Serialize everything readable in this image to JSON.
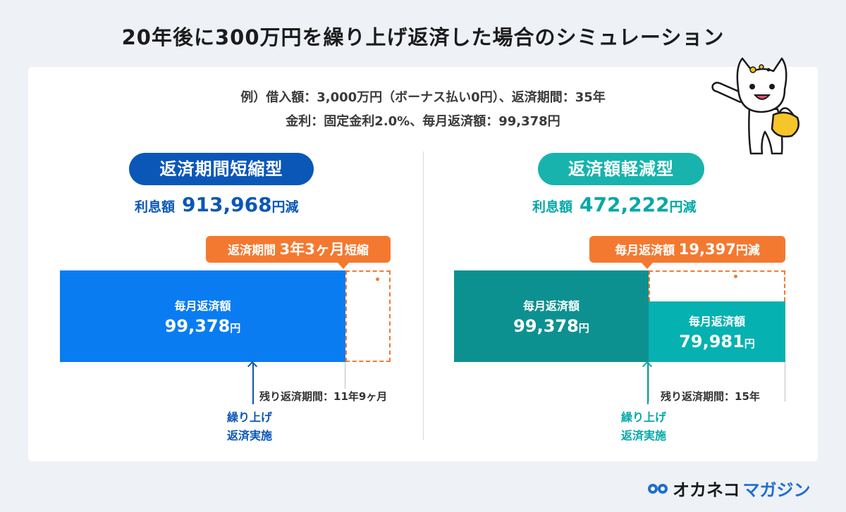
{
  "title": "20年後に300万円を繰り上げ返済した場合のシミュレーション",
  "conditions": {
    "line1": "例）借入額：3,000万円（ボーナス払い0円）、返済期間：35年",
    "line2": "金利：固定金利2.0%、毎月返済額：99,378円"
  },
  "left": {
    "heading": "返済期間短縮型",
    "interest_label": "利息額",
    "interest_value": "913,968",
    "interest_unit": "円減",
    "badge_label": "返済期間",
    "badge_value": "3年3ヶ月",
    "badge_unit": "短縮",
    "bar_label": "毎月返済額",
    "bar_value": "99,378",
    "bar_unit": "円",
    "remaining": "残り返済期間：11年9ヶ月",
    "prepay_line1": "繰り上げ",
    "prepay_line2": "返済実施"
  },
  "right": {
    "heading": "返済額軽減型",
    "interest_label": "利息額",
    "interest_value": "472,222",
    "interest_unit": "円減",
    "badge_label": "毎月返済額",
    "badge_value": "19,397",
    "badge_unit": "円減",
    "bar_label": "毎月返済額",
    "bar_value": "99,378",
    "bar_unit": "円",
    "bar2_label": "毎月返済額",
    "bar2_value": "79,981",
    "bar2_unit": "円",
    "remaining": "残り返済期間：15年",
    "prepay_line1": "繰り上げ",
    "prepay_line2": "返済実施"
  },
  "logo": {
    "name": "オカネコ",
    "sub": "マガジン"
  },
  "colors": {
    "blue": "#0a7cf2",
    "navy": "#0b57b8",
    "teal_dark": "#0d9190",
    "teal": "#05b1b1",
    "teal_pill": "#18b3ad",
    "orange": "#f47930"
  }
}
